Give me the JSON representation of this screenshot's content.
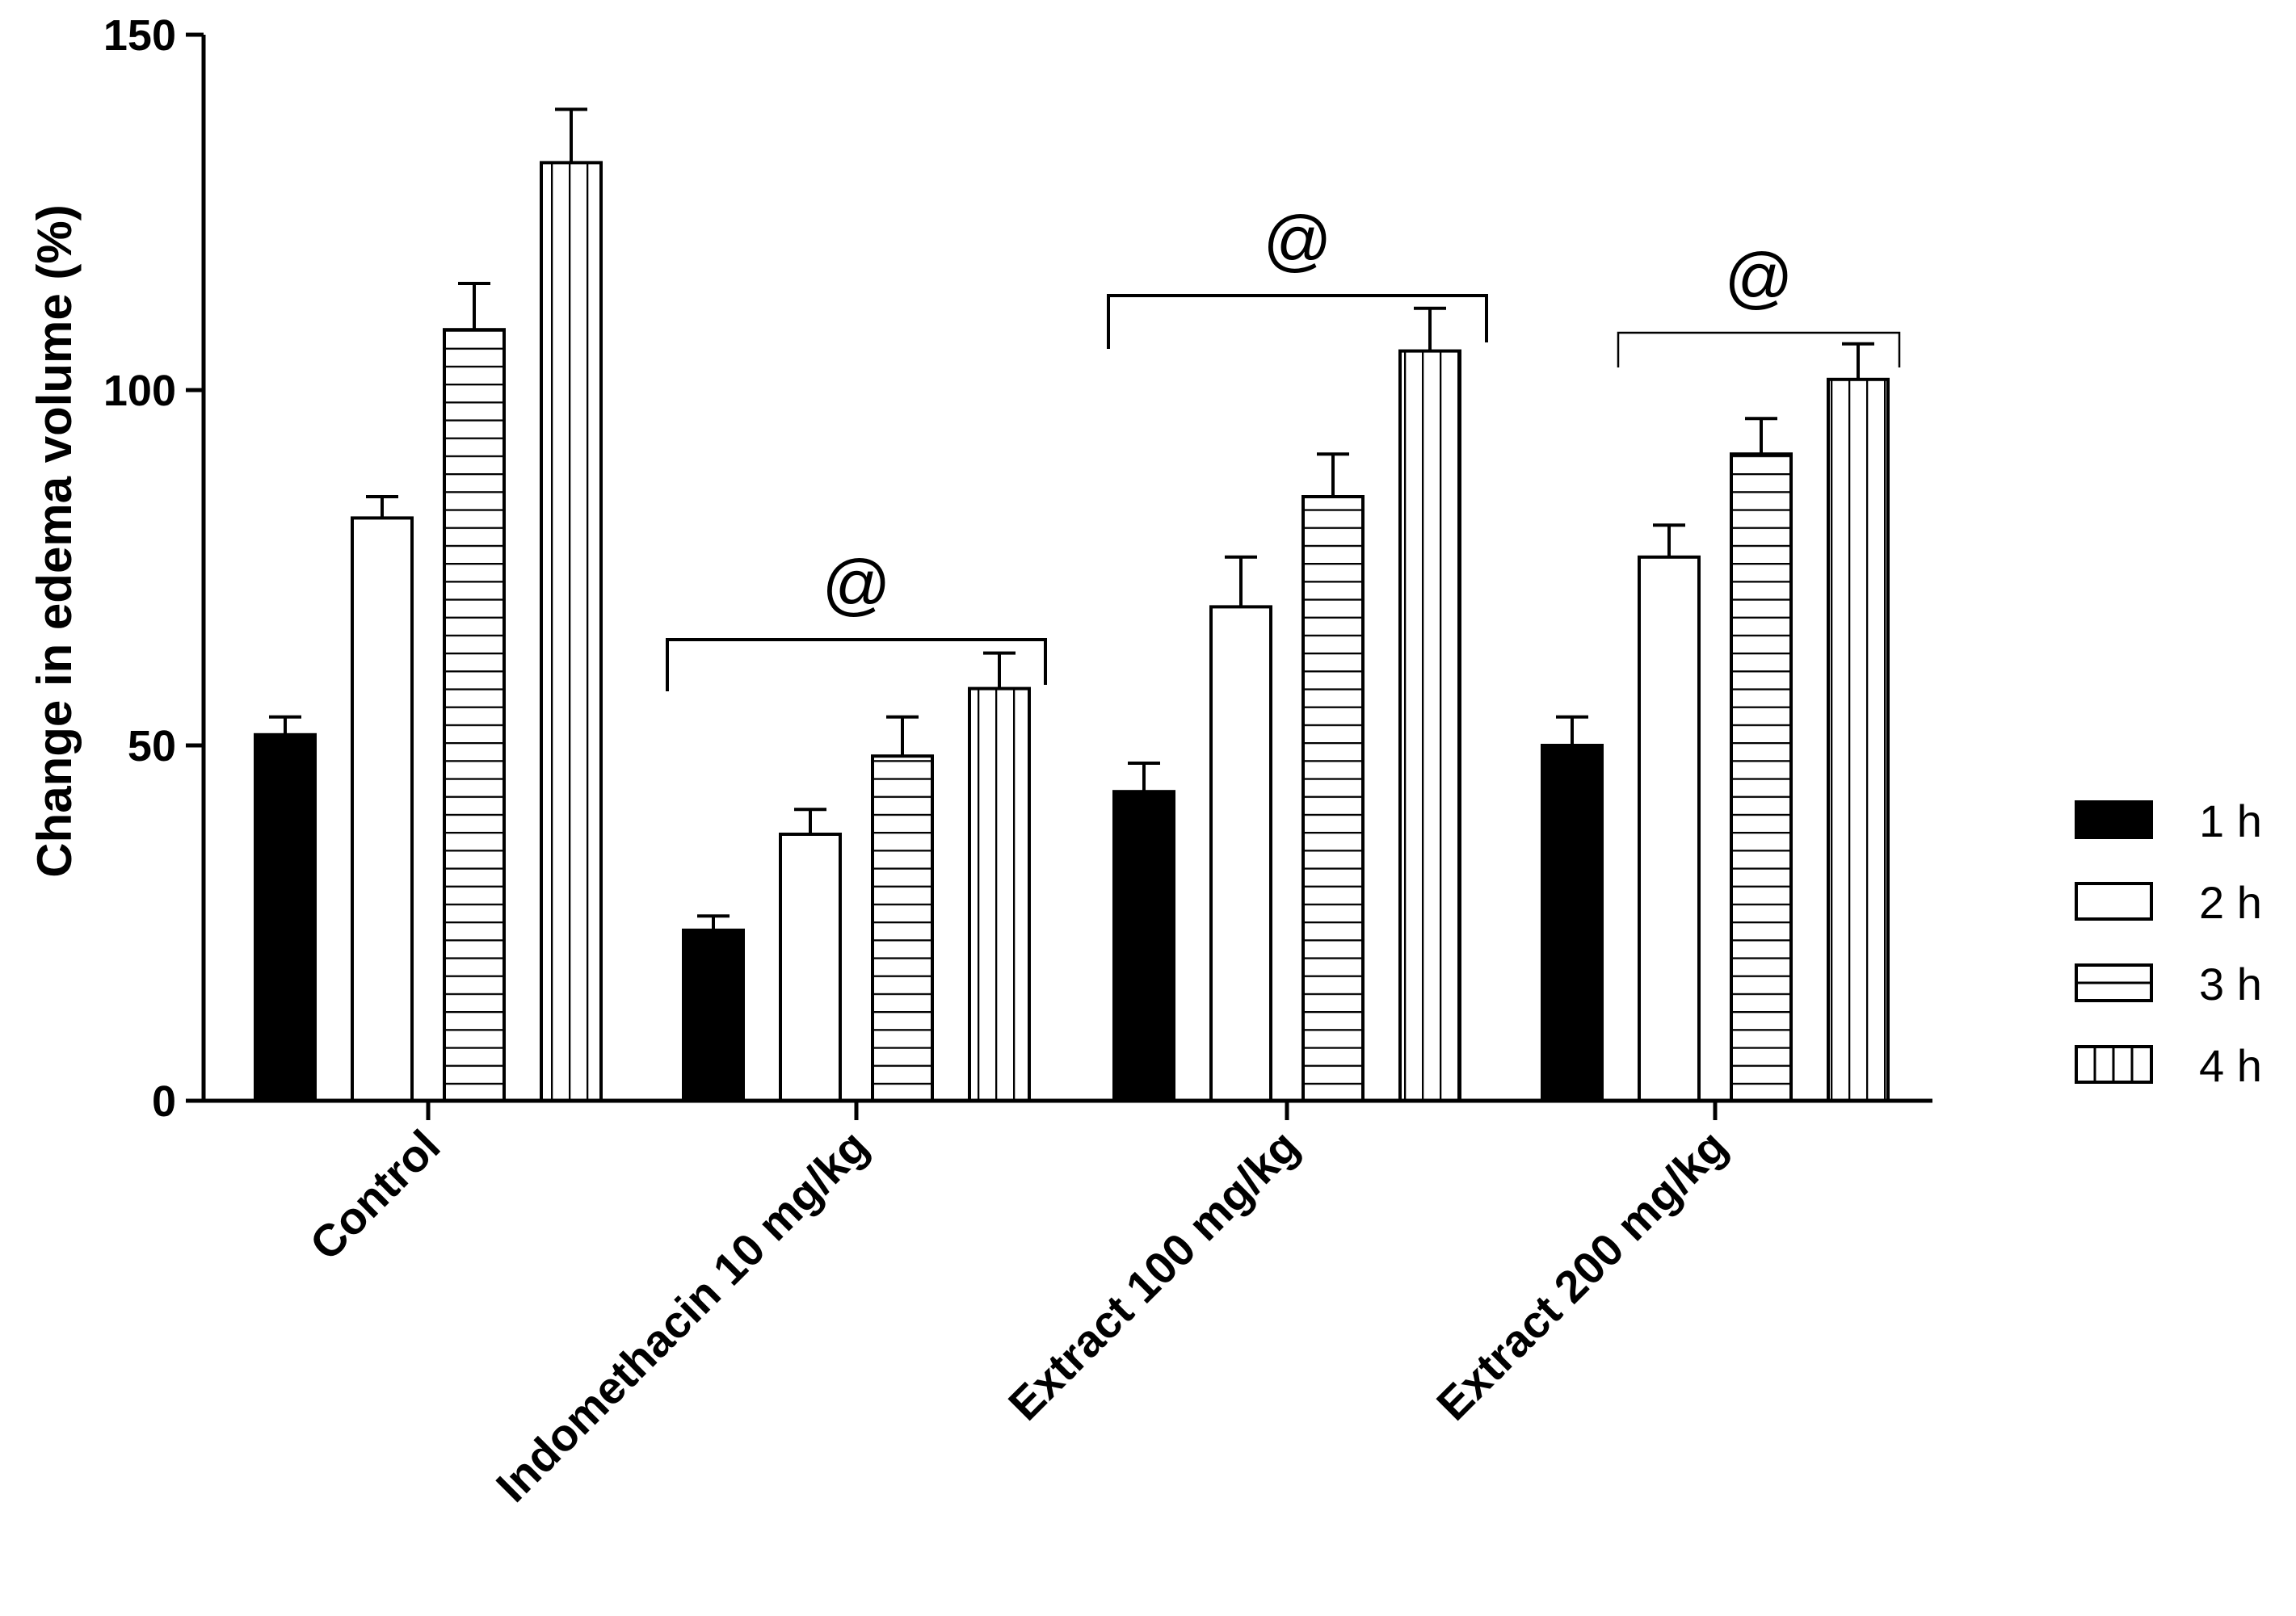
{
  "chart_data": {
    "type": "bar",
    "title": "",
    "xlabel": "",
    "ylabel": "Change in edema volume (%)",
    "ylim": [
      0,
      150
    ],
    "yticks": [
      0,
      50,
      100,
      150
    ],
    "grid": false,
    "legend_position": "right",
    "categories": [
      "Control",
      "Indomethacin 10 mg/kg",
      "Extract 100 mg/kg",
      "Extract 200 mg/kg"
    ],
    "series": [
      {
        "name": "1 h",
        "pattern": "solid",
        "values": [
          51.5,
          24,
          43.5,
          50
        ],
        "errors": [
          2.5,
          2,
          4,
          4
        ]
      },
      {
        "name": "2 h",
        "pattern": "empty",
        "values": [
          82,
          37.5,
          69.5,
          76.5
        ],
        "errors": [
          3,
          3.5,
          7,
          4.5
        ]
      },
      {
        "name": "3 h",
        "pattern": "horizontal-lines",
        "values": [
          108.5,
          48.5,
          85,
          91
        ],
        "errors": [
          6.5,
          5.5,
          6,
          5
        ]
      },
      {
        "name": "4 h",
        "pattern": "vertical-lines",
        "values": [
          132,
          58,
          105.5,
          101.5
        ],
        "errors": [
          7.5,
          5,
          6,
          5
        ]
      }
    ],
    "annotations": [
      {
        "text": "@",
        "category": "Indomethacin 10 mg/kg"
      },
      {
        "text": "@",
        "category": "Extract 100 mg/kg"
      },
      {
        "text": "@",
        "category": "Extract 200 mg/kg"
      }
    ]
  }
}
